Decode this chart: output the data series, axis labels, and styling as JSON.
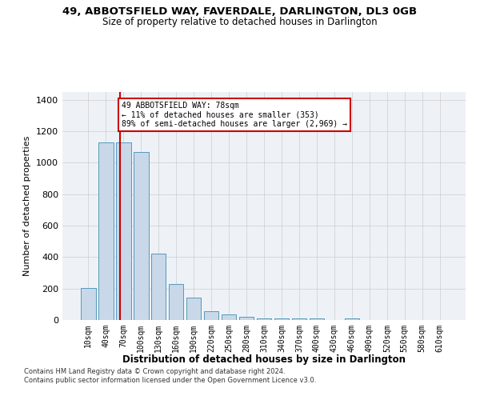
{
  "title1": "49, ABBOTSFIELD WAY, FAVERDALE, DARLINGTON, DL3 0GB",
  "title2": "Size of property relative to detached houses in Darlington",
  "xlabel": "Distribution of detached houses by size in Darlington",
  "ylabel": "Number of detached properties",
  "categories": [
    "10sqm",
    "40sqm",
    "70sqm",
    "100sqm",
    "130sqm",
    "160sqm",
    "190sqm",
    "220sqm",
    "250sqm",
    "280sqm",
    "310sqm",
    "340sqm",
    "370sqm",
    "400sqm",
    "430sqm",
    "460sqm",
    "490sqm",
    "520sqm",
    "550sqm",
    "580sqm",
    "610sqm"
  ],
  "values": [
    205,
    1130,
    1130,
    1070,
    420,
    230,
    145,
    55,
    35,
    20,
    10,
    10,
    10,
    10,
    0,
    10,
    0,
    0,
    0,
    0,
    0
  ],
  "bar_color": "#c8d8e8",
  "bar_edgecolor": "#5599bb",
  "bar_width": 0.85,
  "vline_color": "#cc0000",
  "annotation_text": "49 ABBOTSFIELD WAY: 78sqm\n← 11% of detached houses are smaller (353)\n89% of semi-detached houses are larger (2,969) →",
  "annotation_box_color": "#ffffff",
  "annotation_box_edgecolor": "#cc0000",
  "ylim": [
    0,
    1450
  ],
  "yticks": [
    0,
    200,
    400,
    600,
    800,
    1000,
    1200,
    1400
  ],
  "bg_color": "#eef2f7",
  "footer1": "Contains HM Land Registry data © Crown copyright and database right 2024.",
  "footer2": "Contains public sector information licensed under the Open Government Licence v3.0."
}
